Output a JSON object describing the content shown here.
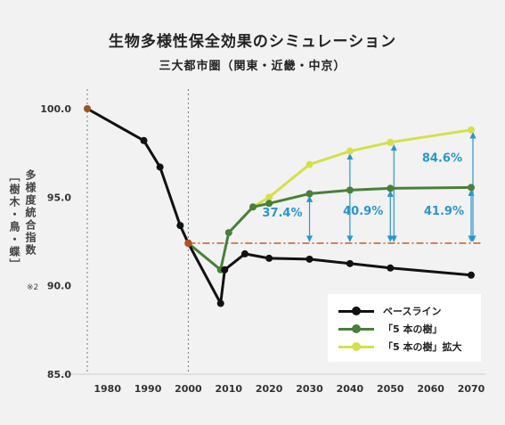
{
  "title": "生物多様性保全効果のシミュレーション",
  "subtitle": "三大都市圏（関東・近畿・中京）",
  "chart_data": {
    "type": "line",
    "ylabel": "多様度統合指数",
    "ylabel_sub": "［樹木・鳥・蝶］",
    "ylabel_note": "※2",
    "x_ticks": [
      "1980",
      "1990",
      "2000",
      "2010",
      "2020",
      "2030",
      "2040",
      "2050",
      "2060",
      "2070"
    ],
    "y_ticks": [
      "85.0",
      "90.0",
      "95.0",
      "100.0"
    ],
    "xlim": [
      1975,
      2072
    ],
    "ylim": [
      85,
      100
    ],
    "vlines": [
      1975,
      2000
    ],
    "baseline": 92.4,
    "series": [
      {
        "name": "ベースライン",
        "color": "#111111",
        "points": [
          [
            1975,
            100.0
          ],
          [
            1989,
            98.2
          ],
          [
            1993,
            96.7
          ],
          [
            1998,
            93.4
          ],
          [
            2000,
            92.4
          ],
          [
            2008,
            89.0
          ],
          [
            2009,
            90.9
          ],
          [
            2014,
            91.8
          ],
          [
            2020,
            91.55
          ],
          [
            2030,
            91.5
          ],
          [
            2040,
            91.25
          ],
          [
            2050,
            91.0
          ],
          [
            2070,
            90.6
          ]
        ]
      },
      {
        "name": "「5 本の樹」",
        "color": "#4a7f3a",
        "points": [
          [
            2000,
            92.4
          ],
          [
            2008,
            90.9
          ],
          [
            2010,
            93.0
          ],
          [
            2016,
            94.45
          ],
          [
            2020,
            94.65
          ],
          [
            2030,
            95.2
          ],
          [
            2040,
            95.4
          ],
          [
            2050,
            95.5
          ],
          [
            2070,
            95.55
          ]
        ]
      },
      {
        "name": "「5 本の樹」拡大",
        "color": "#d4e04a",
        "points": [
          [
            2016,
            94.45
          ],
          [
            2020,
            95.0
          ],
          [
            2030,
            96.85
          ],
          [
            2040,
            97.6
          ],
          [
            2050,
            98.1
          ],
          [
            2070,
            98.8
          ]
        ]
      }
    ],
    "annotations": [
      {
        "label": "37.4%",
        "x": 2030
      },
      {
        "label": "40.9%",
        "x": 2050
      },
      {
        "label": "41.9%",
        "x": 2070
      },
      {
        "label": "84.6%",
        "x": 2070
      }
    ]
  }
}
